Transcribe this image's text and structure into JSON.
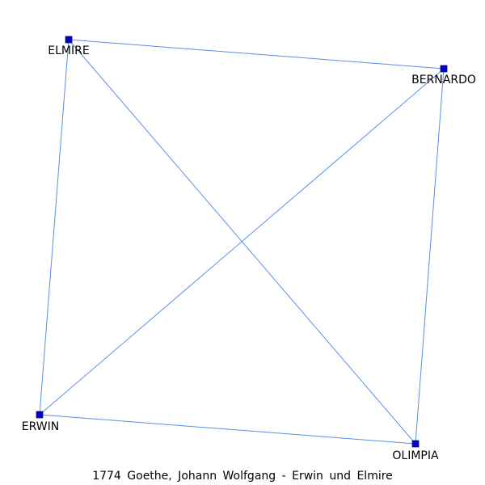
{
  "graph": {
    "nodes": [
      {
        "id": "elmire",
        "label": "ELMIRE"
      },
      {
        "id": "bernardo",
        "label": "BERNARDO"
      },
      {
        "id": "erwin",
        "label": "ERWIN"
      },
      {
        "id": "olimpia",
        "label": "OLIMPIA"
      }
    ],
    "edges": [
      {
        "source": "elmire",
        "target": "bernardo"
      },
      {
        "source": "elmire",
        "target": "erwin"
      },
      {
        "source": "elmire",
        "target": "olimpia"
      },
      {
        "source": "bernardo",
        "target": "erwin"
      },
      {
        "source": "bernardo",
        "target": "olimpia"
      },
      {
        "source": "erwin",
        "target": "olimpia"
      }
    ],
    "colors": {
      "edge": "#5b8fe8",
      "node": "#0000cc"
    }
  },
  "caption": "1774 Goethe, Johann Wolfgang - Erwin und Elmire"
}
